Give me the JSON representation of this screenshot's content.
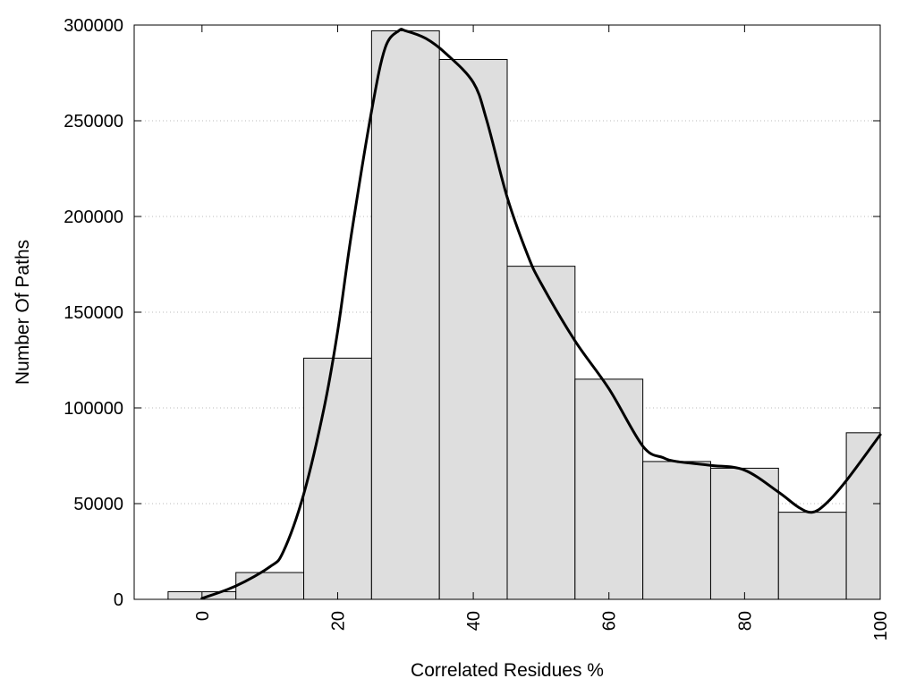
{
  "chart_data": {
    "type": "bar",
    "title": "",
    "xlabel": "Correlated Residues %",
    "ylabel": "Number Of Paths",
    "xlim": [
      -10,
      100
    ],
    "ylim": [
      0,
      300000
    ],
    "grid": true,
    "x_ticks": [
      0,
      20,
      40,
      60,
      80,
      100
    ],
    "y_ticks": [
      0,
      50000,
      100000,
      150000,
      200000,
      250000,
      300000
    ],
    "bins": [
      {
        "x": 0,
        "value": 4000
      },
      {
        "x": 10,
        "value": 14000
      },
      {
        "x": 20,
        "value": 126000
      },
      {
        "x": 30,
        "value": 297000
      },
      {
        "x": 40,
        "value": 282000
      },
      {
        "x": 50,
        "value": 174000
      },
      {
        "x": 60,
        "value": 115000
      },
      {
        "x": 70,
        "value": 72000
      },
      {
        "x": 80,
        "value": 68500
      },
      {
        "x": 90,
        "value": 45500
      },
      {
        "x": 100,
        "value": 87000
      }
    ],
    "bin_width": 10,
    "curve": {
      "type": "line",
      "x": [
        0,
        5,
        10,
        12,
        15,
        18,
        20,
        22,
        25,
        27,
        29,
        30,
        33,
        36,
        40,
        42,
        45,
        48,
        50,
        55,
        60,
        65,
        68,
        70,
        75,
        80,
        85,
        88,
        90,
        92,
        95,
        100
      ],
      "y": [
        500,
        7000,
        17000,
        25000,
        55000,
        100000,
        140000,
        190000,
        255000,
        288000,
        297000,
        297000,
        293000,
        285000,
        270000,
        250000,
        210000,
        180000,
        165000,
        135000,
        110000,
        80000,
        74000,
        72000,
        70000,
        67500,
        56000,
        48000,
        45500,
        50000,
        62000,
        86000
      ]
    }
  }
}
